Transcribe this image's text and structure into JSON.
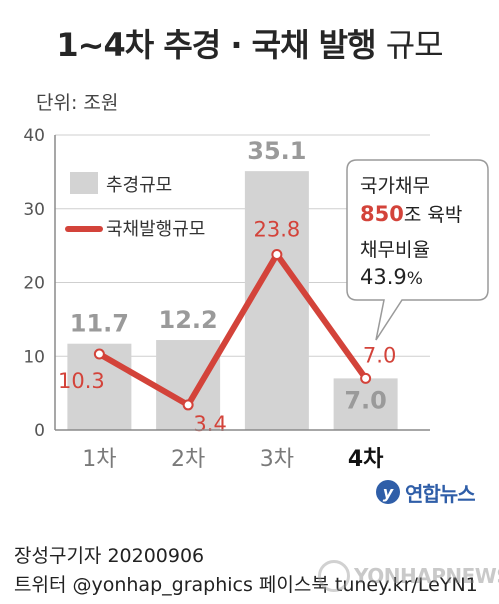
{
  "title": {
    "bold": "1~4차 추경 · 국채 발행",
    "light": "규모"
  },
  "unit_label": "단위: 조원",
  "chart_data": {
    "type": "bar",
    "categories": [
      "1차",
      "2차",
      "3차",
      "4차"
    ],
    "highlight_category": "4차",
    "ylim": [
      0,
      40
    ],
    "yticks": [
      0,
      10,
      20,
      30,
      40
    ],
    "ylabel": "",
    "xlabel": "",
    "series": [
      {
        "name": "추경규모",
        "type": "bar",
        "color": "#d3d3d3",
        "label_color": "#9a9a9a",
        "values": [
          11.7,
          12.2,
          35.1,
          7.0
        ],
        "value_labels": [
          "11.7",
          "12.2",
          "35.1",
          "7.0"
        ]
      },
      {
        "name": "국채발행규모",
        "type": "line",
        "color": "#d3433a",
        "values": [
          10.3,
          3.4,
          23.8,
          7.0
        ],
        "value_labels": [
          "10.3",
          "3.4",
          "23.8",
          "7.0"
        ]
      }
    ],
    "legend_position": "top-left"
  },
  "callout": {
    "line1": "국가채무",
    "amount": "850",
    "amount_suffix": "조 육박",
    "line3": "채무비율",
    "ratio": "43.9",
    "ratio_unit": "%"
  },
  "colors": {
    "bar": "#d3d3d3",
    "line": "#d3433a",
    "brand": "#2f5ea8"
  },
  "logo": {
    "icon_name": "yonhap-logo-icon",
    "text": "연합뉴스"
  },
  "credit": {
    "line1": "장성구기자  20200906",
    "line2": "트위터 @yonhap_graphics  페이스북 tuney.kr/LeYN1"
  },
  "watermark": {
    "icon_name": "yonhapnews-watermark-icon",
    "text": "YONHAPNEWS"
  }
}
